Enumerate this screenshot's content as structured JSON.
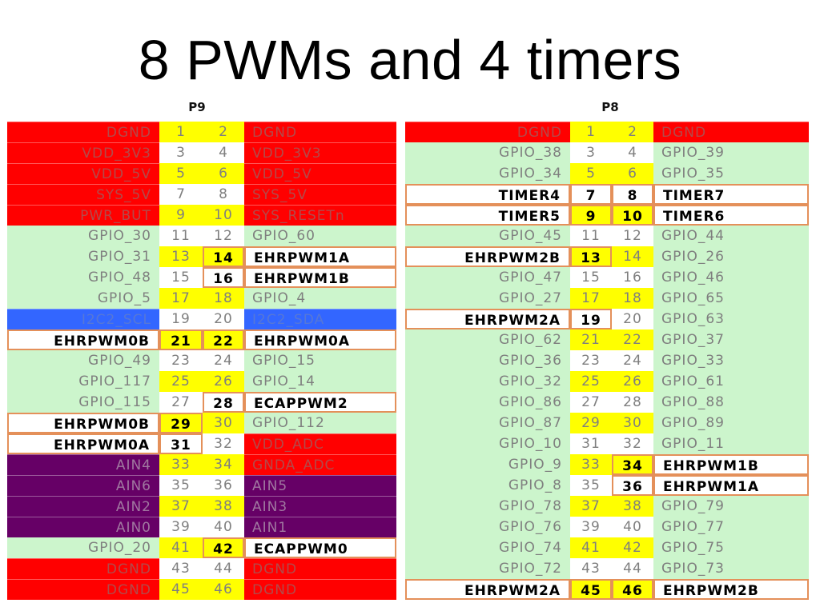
{
  "title": "8 PWMs and 4 timers",
  "colors": {
    "green": "#ccf5cc",
    "red": "#ff0000",
    "purple": "#660066",
    "blue": "#3366ff",
    "yellow": "#ffff00",
    "highlight_border": "#e4905a"
  },
  "p9": {
    "label": "P9",
    "rows": [
      {
        "left": "DGND",
        "n1": "1",
        "n2": "2",
        "right": "DGND",
        "ls": "red",
        "rs": "red",
        "n1s": "yellow",
        "n2s": "yellow",
        "n1h": false,
        "n2h": false
      },
      {
        "left": "VDD_3V3",
        "n1": "3",
        "n2": "4",
        "right": "VDD_3V3",
        "ls": "red",
        "rs": "red",
        "n1s": "white",
        "n2s": "white",
        "n1h": false,
        "n2h": false
      },
      {
        "left": "VDD_5V",
        "n1": "5",
        "n2": "6",
        "right": "VDD_5V",
        "ls": "red",
        "rs": "red",
        "n1s": "yellow",
        "n2s": "yellow",
        "n1h": false,
        "n2h": false
      },
      {
        "left": "SYS_5V",
        "n1": "7",
        "n2": "8",
        "right": "SYS_5V",
        "ls": "red",
        "rs": "red",
        "n1s": "white",
        "n2s": "white",
        "n1h": false,
        "n2h": false
      },
      {
        "left": "PWR_BUT",
        "n1": "9",
        "n2": "10",
        "right": "SYS_RESETn",
        "ls": "red",
        "rs": "red",
        "n1s": "yellow",
        "n2s": "yellow",
        "n1h": false,
        "n2h": false
      },
      {
        "left": "GPIO_30",
        "n1": "11",
        "n2": "12",
        "right": "GPIO_60",
        "ls": "green",
        "rs": "green",
        "n1s": "white",
        "n2s": "white",
        "n1h": false,
        "n2h": false
      },
      {
        "left": "GPIO_31",
        "n1": "13",
        "n2": "14",
        "right": "EHRPWM1A",
        "ls": "green",
        "rs": "hl",
        "n1s": "yellow",
        "n2s": "yellow",
        "n1h": false,
        "n2h": true
      },
      {
        "left": "GPIO_48",
        "n1": "15",
        "n2": "16",
        "right": "EHRPWM1B",
        "ls": "green",
        "rs": "hl",
        "n1s": "white",
        "n2s": "white",
        "n1h": false,
        "n2h": true
      },
      {
        "left": "GPIO_5",
        "n1": "17",
        "n2": "18",
        "right": "GPIO_4",
        "ls": "green",
        "rs": "green",
        "n1s": "yellow",
        "n2s": "yellow",
        "n1h": false,
        "n2h": false
      },
      {
        "left": "I2C2_SCL",
        "n1": "19",
        "n2": "20",
        "right": "I2C2_SDA",
        "ls": "blue",
        "rs": "blue",
        "n1s": "white",
        "n2s": "white",
        "n1h": false,
        "n2h": false
      },
      {
        "left": "EHRPWM0B",
        "n1": "21",
        "n2": "22",
        "right": "EHRPWM0A",
        "ls": "hl",
        "rs": "hl",
        "n1s": "yellow",
        "n2s": "yellow",
        "n1h": true,
        "n2h": true
      },
      {
        "left": "GPIO_49",
        "n1": "23",
        "n2": "24",
        "right": "GPIO_15",
        "ls": "green",
        "rs": "green",
        "n1s": "white",
        "n2s": "white",
        "n1h": false,
        "n2h": false
      },
      {
        "left": "GPIO_117",
        "n1": "25",
        "n2": "26",
        "right": "GPIO_14",
        "ls": "green",
        "rs": "green",
        "n1s": "yellow",
        "n2s": "yellow",
        "n1h": false,
        "n2h": false
      },
      {
        "left": "GPIO_115",
        "n1": "27",
        "n2": "28",
        "right": "ECAPPWM2",
        "ls": "green",
        "rs": "hl",
        "n1s": "white",
        "n2s": "white",
        "n1h": false,
        "n2h": true
      },
      {
        "left": "EHRPWM0B",
        "n1": "29",
        "n2": "30",
        "right": "GPIO_112",
        "ls": "hl",
        "rs": "green",
        "n1s": "yellow",
        "n2s": "yellow",
        "n1h": true,
        "n2h": false
      },
      {
        "left": "EHRPWM0A",
        "n1": "31",
        "n2": "32",
        "right": "VDD_ADC",
        "ls": "hl",
        "rs": "red",
        "n1s": "white",
        "n2s": "white",
        "n1h": true,
        "n2h": false
      },
      {
        "left": "AIN4",
        "n1": "33",
        "n2": "34",
        "right": "GNDA_ADC",
        "ls": "purple",
        "rs": "red",
        "n1s": "yellow",
        "n2s": "yellow",
        "n1h": false,
        "n2h": false
      },
      {
        "left": "AIN6",
        "n1": "35",
        "n2": "36",
        "right": "AIN5",
        "ls": "purple",
        "rs": "purple",
        "n1s": "white",
        "n2s": "white",
        "n1h": false,
        "n2h": false
      },
      {
        "left": "AIN2",
        "n1": "37",
        "n2": "38",
        "right": "AIN3",
        "ls": "purple",
        "rs": "purple",
        "n1s": "yellow",
        "n2s": "yellow",
        "n1h": false,
        "n2h": false
      },
      {
        "left": "AIN0",
        "n1": "39",
        "n2": "40",
        "right": "AIN1",
        "ls": "purple",
        "rs": "purple",
        "n1s": "white",
        "n2s": "white",
        "n1h": false,
        "n2h": false
      },
      {
        "left": "GPIO_20",
        "n1": "41",
        "n2": "42",
        "right": "ECAPPWM0",
        "ls": "green",
        "rs": "hl",
        "n1s": "yellow",
        "n2s": "yellow",
        "n1h": false,
        "n2h": true
      },
      {
        "left": "DGND",
        "n1": "43",
        "n2": "44",
        "right": "DGND",
        "ls": "red",
        "rs": "red",
        "n1s": "white",
        "n2s": "white",
        "n1h": false,
        "n2h": false
      },
      {
        "left": "DGND",
        "n1": "45",
        "n2": "46",
        "right": "DGND",
        "ls": "red",
        "rs": "red",
        "n1s": "yellow",
        "n2s": "yellow",
        "n1h": false,
        "n2h": false
      }
    ]
  },
  "p8": {
    "label": "P8",
    "rows": [
      {
        "left": "DGND",
        "n1": "1",
        "n2": "2",
        "right": "DGND",
        "ls": "red",
        "rs": "red",
        "n1s": "yellow",
        "n2s": "yellow",
        "n1h": false,
        "n2h": false
      },
      {
        "left": "GPIO_38",
        "n1": "3",
        "n2": "4",
        "right": "GPIO_39",
        "ls": "green",
        "rs": "green",
        "n1s": "white",
        "n2s": "white",
        "n1h": false,
        "n2h": false
      },
      {
        "left": "GPIO_34",
        "n1": "5",
        "n2": "6",
        "right": "GPIO_35",
        "ls": "green",
        "rs": "green",
        "n1s": "yellow",
        "n2s": "yellow",
        "n1h": false,
        "n2h": false
      },
      {
        "left": "TIMER4",
        "n1": "7",
        "n2": "8",
        "right": "TIMER7",
        "ls": "hl",
        "rs": "hl",
        "n1s": "white",
        "n2s": "white",
        "n1h": true,
        "n2h": true
      },
      {
        "left": "TIMER5",
        "n1": "9",
        "n2": "10",
        "right": "TIMER6",
        "ls": "hl",
        "rs": "hl",
        "n1s": "yellow",
        "n2s": "yellow",
        "n1h": true,
        "n2h": true
      },
      {
        "left": "GPIO_45",
        "n1": "11",
        "n2": "12",
        "right": "GPIO_44",
        "ls": "green",
        "rs": "green",
        "n1s": "white",
        "n2s": "white",
        "n1h": false,
        "n2h": false
      },
      {
        "left": "EHRPWM2B",
        "n1": "13",
        "n2": "14",
        "right": "GPIO_26",
        "ls": "hl",
        "rs": "green",
        "n1s": "yellow",
        "n2s": "yellow",
        "n1h": true,
        "n2h": false
      },
      {
        "left": "GPIO_47",
        "n1": "15",
        "n2": "16",
        "right": "GPIO_46",
        "ls": "green",
        "rs": "green",
        "n1s": "white",
        "n2s": "white",
        "n1h": false,
        "n2h": false
      },
      {
        "left": "GPIO_27",
        "n1": "17",
        "n2": "18",
        "right": "GPIO_65",
        "ls": "green",
        "rs": "green",
        "n1s": "yellow",
        "n2s": "yellow",
        "n1h": false,
        "n2h": false
      },
      {
        "left": "EHRPWM2A",
        "n1": "19",
        "n2": "20",
        "right": "GPIO_63",
        "ls": "hl",
        "rs": "green",
        "n1s": "white",
        "n2s": "white",
        "n1h": true,
        "n2h": false
      },
      {
        "left": "GPIO_62",
        "n1": "21",
        "n2": "22",
        "right": "GPIO_37",
        "ls": "green",
        "rs": "green",
        "n1s": "yellow",
        "n2s": "yellow",
        "n1h": false,
        "n2h": false
      },
      {
        "left": "GPIO_36",
        "n1": "23",
        "n2": "24",
        "right": "GPIO_33",
        "ls": "green",
        "rs": "green",
        "n1s": "white",
        "n2s": "white",
        "n1h": false,
        "n2h": false
      },
      {
        "left": "GPIO_32",
        "n1": "25",
        "n2": "26",
        "right": "GPIO_61",
        "ls": "green",
        "rs": "green",
        "n1s": "yellow",
        "n2s": "yellow",
        "n1h": false,
        "n2h": false
      },
      {
        "left": "GPIO_86",
        "n1": "27",
        "n2": "28",
        "right": "GPIO_88",
        "ls": "green",
        "rs": "green",
        "n1s": "white",
        "n2s": "white",
        "n1h": false,
        "n2h": false
      },
      {
        "left": "GPIO_87",
        "n1": "29",
        "n2": "30",
        "right": "GPIO_89",
        "ls": "green",
        "rs": "green",
        "n1s": "yellow",
        "n2s": "yellow",
        "n1h": false,
        "n2h": false
      },
      {
        "left": "GPIO_10",
        "n1": "31",
        "n2": "32",
        "right": "GPIO_11",
        "ls": "green",
        "rs": "green",
        "n1s": "white",
        "n2s": "white",
        "n1h": false,
        "n2h": false
      },
      {
        "left": "GPIO_9",
        "n1": "33",
        "n2": "34",
        "right": "EHRPWM1B",
        "ls": "green",
        "rs": "hl",
        "n1s": "yellow",
        "n2s": "yellow",
        "n1h": false,
        "n2h": true
      },
      {
        "left": "GPIO_8",
        "n1": "35",
        "n2": "36",
        "right": "EHRPWM1A",
        "ls": "green",
        "rs": "hl",
        "n1s": "white",
        "n2s": "white",
        "n1h": false,
        "n2h": true
      },
      {
        "left": "GPIO_78",
        "n1": "37",
        "n2": "38",
        "right": "GPIO_79",
        "ls": "green",
        "rs": "green",
        "n1s": "yellow",
        "n2s": "yellow",
        "n1h": false,
        "n2h": false
      },
      {
        "left": "GPIO_76",
        "n1": "39",
        "n2": "40",
        "right": "GPIO_77",
        "ls": "green",
        "rs": "green",
        "n1s": "white",
        "n2s": "white",
        "n1h": false,
        "n2h": false
      },
      {
        "left": "GPIO_74",
        "n1": "41",
        "n2": "42",
        "right": "GPIO_75",
        "ls": "green",
        "rs": "green",
        "n1s": "yellow",
        "n2s": "yellow",
        "n1h": false,
        "n2h": false
      },
      {
        "left": "GPIO_72",
        "n1": "43",
        "n2": "44",
        "right": "GPIO_73",
        "ls": "green",
        "rs": "green",
        "n1s": "white",
        "n2s": "white",
        "n1h": false,
        "n2h": false
      },
      {
        "left": "EHRPWM2A",
        "n1": "45",
        "n2": "46",
        "right": "EHRPWM2B",
        "ls": "hl",
        "rs": "hl",
        "n1s": "yellow",
        "n2s": "yellow",
        "n1h": true,
        "n2h": true
      }
    ]
  }
}
